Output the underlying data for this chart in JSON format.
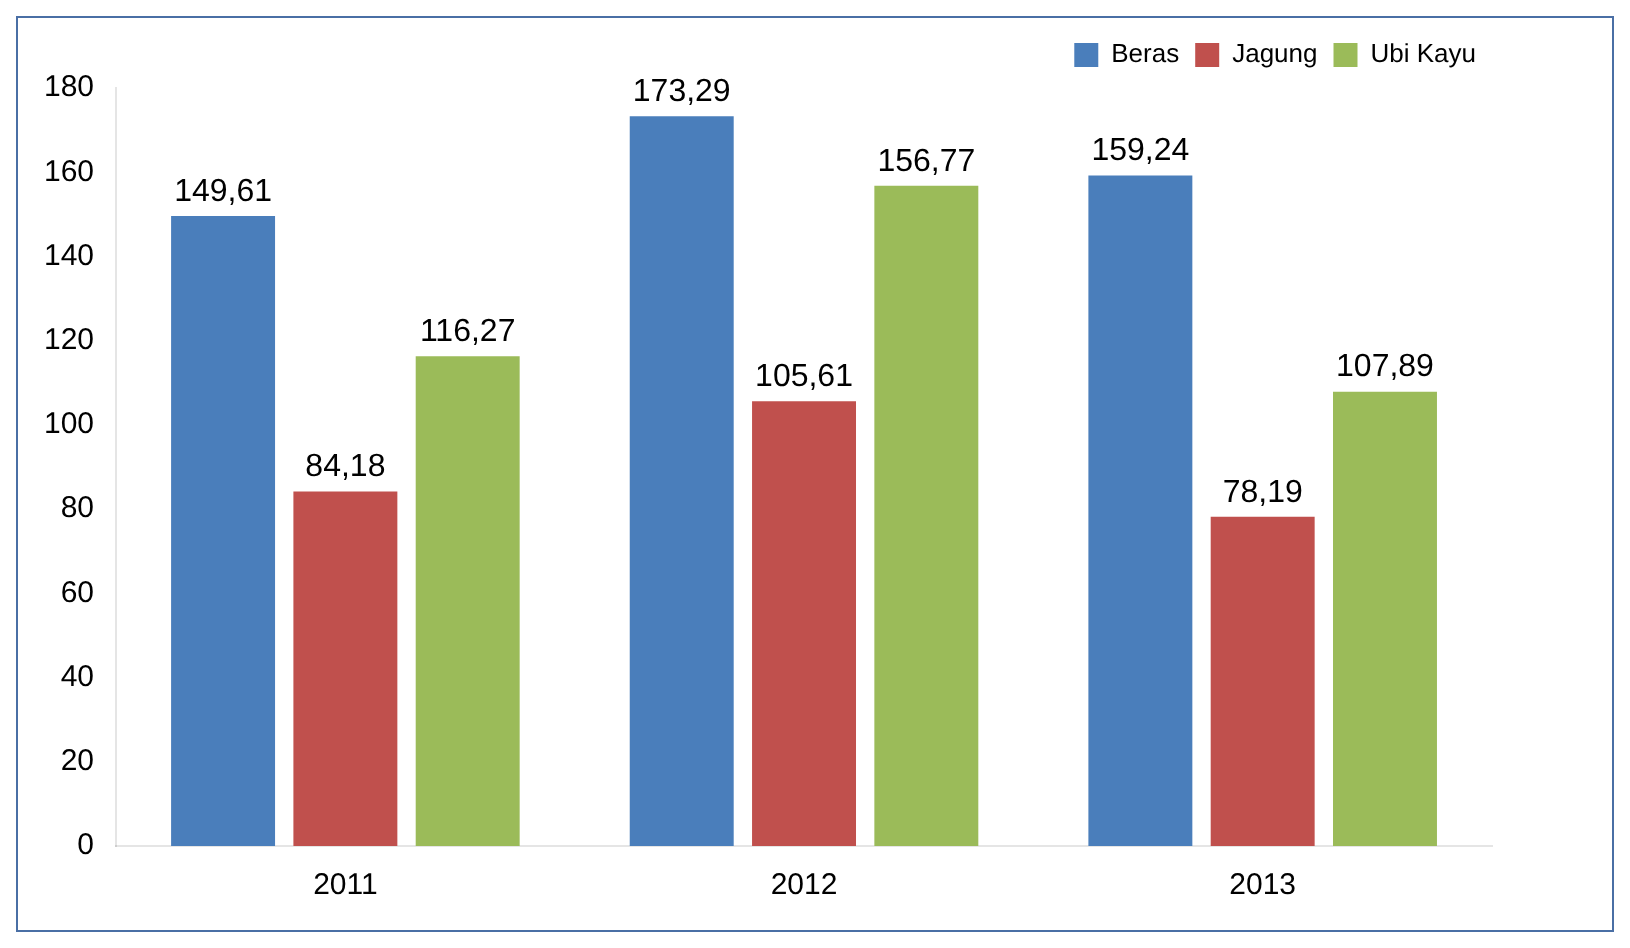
{
  "chart_data": {
    "type": "bar",
    "categories": [
      "2011",
      "2012",
      "2013"
    ],
    "series": [
      {
        "name": "Beras",
        "color": "#4a7ebb",
        "values": [
          149.61,
          173.29,
          159.24
        ],
        "value_labels": [
          "149,61",
          "173,29",
          "159,24"
        ]
      },
      {
        "name": "Jagung",
        "color": "#c0504d",
        "values": [
          84.18,
          105.61,
          78.19
        ],
        "value_labels": [
          "84,18",
          "105,61",
          "78,19"
        ]
      },
      {
        "name": "Ubi Kayu",
        "color": "#9bbb59",
        "values": [
          116.27,
          156.77,
          107.89
        ],
        "value_labels": [
          "116,27",
          "156,77",
          "107,89"
        ]
      }
    ],
    "ylim": [
      0,
      180
    ],
    "yticks": [
      0,
      20,
      40,
      60,
      80,
      100,
      120,
      140,
      160,
      180
    ],
    "grid": false,
    "legend": "top right"
  }
}
